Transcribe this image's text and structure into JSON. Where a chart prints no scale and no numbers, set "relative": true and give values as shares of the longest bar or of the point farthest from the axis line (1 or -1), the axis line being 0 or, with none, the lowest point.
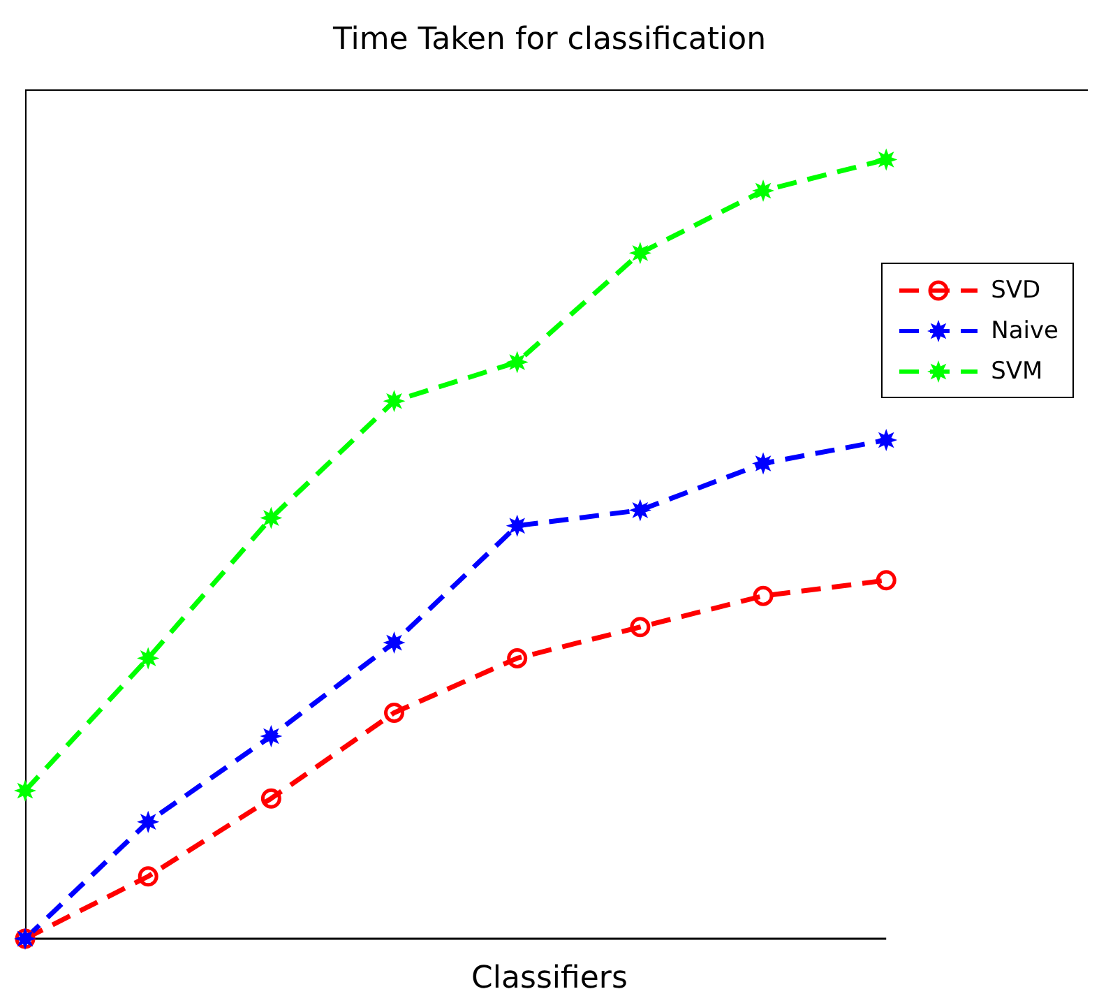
{
  "chart_data": {
    "type": "line",
    "title": "Time Taken for classification",
    "xlabel": "Classifiers",
    "relative": true,
    "tick_labels": false,
    "grid": false,
    "legend": "top right",
    "line_style": "dashed",
    "categories": [
      null,
      null,
      null,
      null,
      null,
      null,
      null,
      null
    ],
    "series": [
      {
        "name": "SVD",
        "color": "#ff0000",
        "marker": "circle",
        "values": [
          0,
          0.08,
          0.18,
          0.29,
          0.36,
          0.4,
          0.44,
          0.46
        ]
      },
      {
        "name": "Naive",
        "color": "#0000ff",
        "marker": "star",
        "values": [
          0,
          0.15,
          0.26,
          0.38,
          0.53,
          0.55,
          0.61,
          0.64
        ]
      },
      {
        "name": "SVM",
        "color": "#00ff00",
        "marker": "star",
        "values": [
          0.19,
          0.36,
          0.54,
          0.69,
          0.74,
          0.88,
          0.96,
          1
        ]
      }
    ]
  }
}
